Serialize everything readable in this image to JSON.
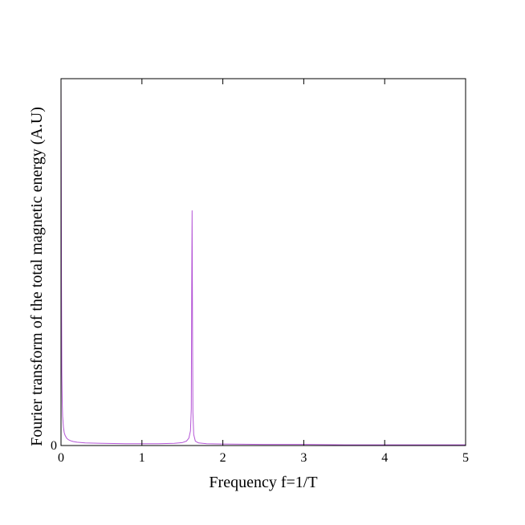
{
  "chart_data": {
    "type": "line",
    "title": "",
    "xlabel": "Frequency f=1/T",
    "ylabel": "Fourier transform of the total magnetic energy (A.U)",
    "xlim": [
      0,
      5
    ],
    "ylim": [
      0,
      1
    ],
    "x_ticks": [
      0,
      1,
      2,
      3,
      4,
      5
    ],
    "x_tick_labels": [
      "0",
      "1",
      "2",
      "3",
      "4",
      "5"
    ],
    "y_ticks": [
      0
    ],
    "y_tick_labels": [
      "0"
    ],
    "grid": false,
    "legend": "none",
    "series": [
      {
        "color": "#b455d6",
        "x": [
          0.0,
          0.003,
          0.006,
          0.01,
          0.015,
          0.02,
          0.03,
          0.04,
          0.05,
          0.07,
          0.09,
          0.12,
          0.15,
          0.2,
          0.3,
          0.5,
          0.8,
          1.0,
          1.2,
          1.4,
          1.5,
          1.55,
          1.58,
          1.6,
          1.61,
          1.615,
          1.62,
          1.625,
          1.63,
          1.64,
          1.66,
          1.7,
          1.8,
          2.0,
          2.5,
          3.0,
          3.5,
          4.0,
          4.5,
          5.0
        ],
        "y": [
          1.0,
          0.8,
          0.45,
          0.2,
          0.12,
          0.08,
          0.05,
          0.035,
          0.028,
          0.02,
          0.016,
          0.013,
          0.011,
          0.009,
          0.007,
          0.006,
          0.005,
          0.005,
          0.005,
          0.006,
          0.008,
          0.012,
          0.02,
          0.04,
          0.1,
          0.42,
          0.64,
          0.35,
          0.09,
          0.03,
          0.012,
          0.007,
          0.005,
          0.004,
          0.003,
          0.003,
          0.002,
          0.002,
          0.002,
          0.002
        ]
      }
    ]
  }
}
